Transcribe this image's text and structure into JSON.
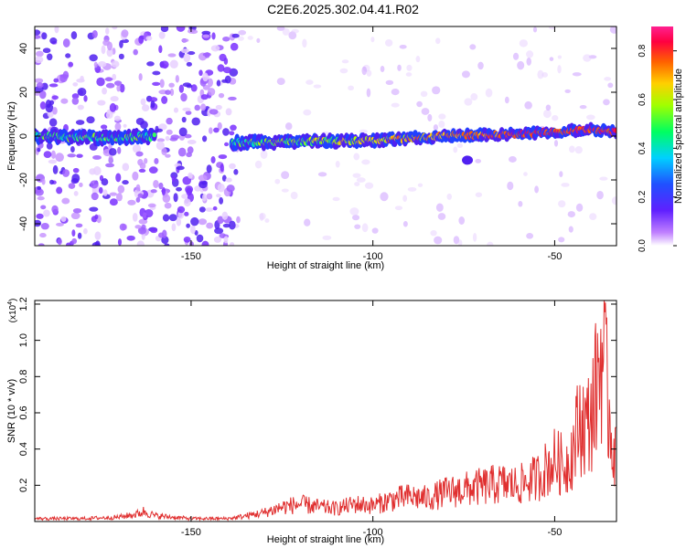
{
  "title": "C2E6.2025.302.04.41.R02",
  "chart_data": [
    {
      "type": "heatmap",
      "xlabel": "Height of straight line (km)",
      "ylabel": "Frequency (Hz)",
      "xlim": [
        -193,
        -33
      ],
      "ylim": [
        -50,
        50
      ],
      "xticks": [
        -150,
        -100,
        -50
      ],
      "yticks": [
        -40,
        -20,
        0,
        20,
        40
      ],
      "colorbar": {
        "label": "Normalized spectral amplitude",
        "range": [
          0,
          0.9
        ],
        "ticks": [
          0.0,
          0.2,
          0.4,
          0.6,
          0.8
        ]
      },
      "trace": {
        "description_points": [
          {
            "x": -193,
            "freq": 0
          },
          {
            "x": -170,
            "freq": -1
          },
          {
            "x": -163,
            "freq": 0
          },
          {
            "x": -138,
            "freq": -3
          },
          {
            "x": -100,
            "freq": -2
          },
          {
            "x": -80,
            "freq": 0
          },
          {
            "x": -60,
            "freq": 1
          },
          {
            "x": -40,
            "freq": 3
          },
          {
            "x": -33,
            "freq": 2
          }
        ],
        "noisy_regions": [
          [
            -193,
            -137
          ]
        ]
      }
    },
    {
      "type": "line",
      "xlabel": "Height of straight line (km)",
      "ylabel": "SNR (10 * v/v)",
      "yscale_label": "(x10",
      "yscale_exp": "4",
      "xlim": [
        -193,
        -33
      ],
      "ylim": [
        0,
        1.22
      ],
      "xticks": [
        -150,
        -100,
        -50
      ],
      "yticks": [
        0.2,
        0.4,
        0.6,
        0.8,
        1.0,
        1.2
      ],
      "series": [
        {
          "color": "#e03030",
          "x": [
            -193,
            -180,
            -170,
            -165,
            -163,
            -160,
            -150,
            -140,
            -137,
            -130,
            -125,
            -120,
            -115,
            -110,
            -105,
            -100,
            -95,
            -90,
            -85,
            -80,
            -75,
            -70,
            -65,
            -60,
            -55,
            -50,
            -47,
            -45,
            -43,
            -41,
            -39,
            -37,
            -35,
            -34,
            -33
          ],
          "y": [
            0.02,
            0.02,
            0.03,
            0.05,
            0.07,
            0.04,
            0.02,
            0.02,
            0.03,
            0.06,
            0.1,
            0.12,
            0.1,
            0.09,
            0.12,
            0.11,
            0.15,
            0.17,
            0.16,
            0.2,
            0.22,
            0.24,
            0.26,
            0.25,
            0.3,
            0.42,
            0.38,
            0.5,
            0.7,
            0.65,
            0.85,
            1.2,
            0.75,
            0.55,
            0.4
          ]
        }
      ]
    }
  ]
}
